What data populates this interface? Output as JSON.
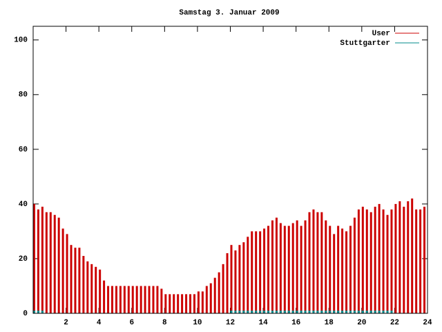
{
  "chart_data": {
    "type": "impulse",
    "title": "Samstag 3. Januar 2009",
    "x": [
      0,
      0.25,
      0.5,
      0.75,
      1,
      1.25,
      1.5,
      1.75,
      2,
      2.25,
      2.5,
      2.75,
      3,
      3.25,
      3.5,
      3.75,
      4,
      4.25,
      4.5,
      4.75,
      5,
      5.25,
      5.5,
      5.75,
      6,
      6.25,
      6.5,
      6.75,
      7,
      7.25,
      7.5,
      7.75,
      8,
      8.25,
      8.5,
      8.75,
      9,
      9.25,
      9.5,
      9.75,
      10,
      10.25,
      10.5,
      10.75,
      11,
      11.25,
      11.5,
      11.75,
      12,
      12.25,
      12.5,
      12.75,
      13,
      13.25,
      13.5,
      13.75,
      14,
      14.25,
      14.5,
      14.75,
      15,
      15.25,
      15.5,
      15.75,
      16,
      16.25,
      16.5,
      16.75,
      17,
      17.25,
      17.5,
      17.75,
      18,
      18.25,
      18.5,
      18.75,
      19,
      19.25,
      19.5,
      19.75,
      20,
      20.25,
      20.5,
      20.75,
      21,
      21.25,
      21.5,
      21.75,
      22,
      22.25,
      22.5,
      22.75,
      23,
      23.25,
      23.5,
      23.75
    ],
    "series": [
      {
        "name": "User",
        "color": "#cc0000",
        "values": [
          40,
          38,
          39,
          37,
          37,
          36,
          35,
          31,
          29,
          25,
          24,
          24,
          21,
          19,
          18,
          17,
          16,
          12,
          10,
          10,
          10,
          10,
          10,
          10,
          10,
          10,
          10,
          10,
          10,
          10,
          10,
          9,
          7,
          7,
          7,
          7,
          7,
          7,
          7,
          7,
          8,
          8,
          10,
          11,
          13,
          15,
          18,
          22,
          25,
          23,
          25,
          26,
          28,
          30,
          30,
          30,
          31,
          32,
          34,
          35,
          33,
          32,
          32,
          33,
          34,
          32,
          34,
          37,
          38,
          37,
          37,
          34,
          32,
          29,
          32,
          31,
          30,
          32,
          35,
          38,
          39,
          38,
          37,
          39,
          40,
          38,
          36,
          38,
          40,
          41,
          39,
          41,
          42,
          38,
          38,
          39
        ]
      },
      {
        "name": "Stuttgarter",
        "color": "#008b8b",
        "values": [
          1,
          1,
          1,
          0,
          0,
          0,
          0,
          0,
          0,
          0,
          0,
          0,
          0,
          0,
          0,
          0,
          0,
          0,
          0,
          0,
          0,
          0,
          0,
          0,
          0,
          0,
          0,
          0,
          0,
          0,
          0,
          0,
          0,
          0,
          0,
          0,
          0,
          0,
          0,
          0,
          0,
          0,
          0,
          0,
          0,
          0,
          0,
          0,
          1,
          1,
          1,
          1,
          1,
          1,
          1,
          1,
          1,
          1,
          1,
          1,
          1,
          1,
          1,
          1,
          1,
          1,
          1,
          1,
          1,
          1,
          1,
          1,
          1,
          1,
          1,
          1,
          1,
          1,
          1,
          1,
          1,
          1,
          1,
          1,
          1,
          1,
          1,
          1,
          0,
          0,
          0,
          0,
          0,
          0,
          0,
          0
        ]
      }
    ],
    "xlim": [
      0,
      24
    ],
    "xticks": [
      2,
      4,
      6,
      8,
      10,
      12,
      14,
      16,
      18,
      20,
      22,
      24
    ],
    "ylim": [
      0,
      105
    ],
    "yticks": [
      0,
      20,
      40,
      60,
      80,
      100
    ]
  }
}
